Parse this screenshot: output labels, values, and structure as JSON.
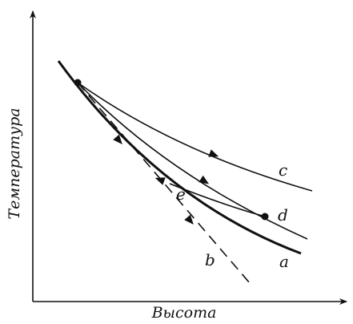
{
  "axes": {
    "x_label": "Высота",
    "y_label": "Температура"
  },
  "curves": {
    "a": {
      "label": "a",
      "style": "thick solid"
    },
    "b": {
      "label": "b",
      "style": "dashed"
    },
    "c": {
      "label": "c",
      "style": "solid"
    },
    "d": {
      "label": "d",
      "style": "solid"
    },
    "e": {
      "label": "e",
      "style": "solid"
    }
  },
  "colors": {
    "ink": "#111111",
    "background": "#ffffff"
  }
}
